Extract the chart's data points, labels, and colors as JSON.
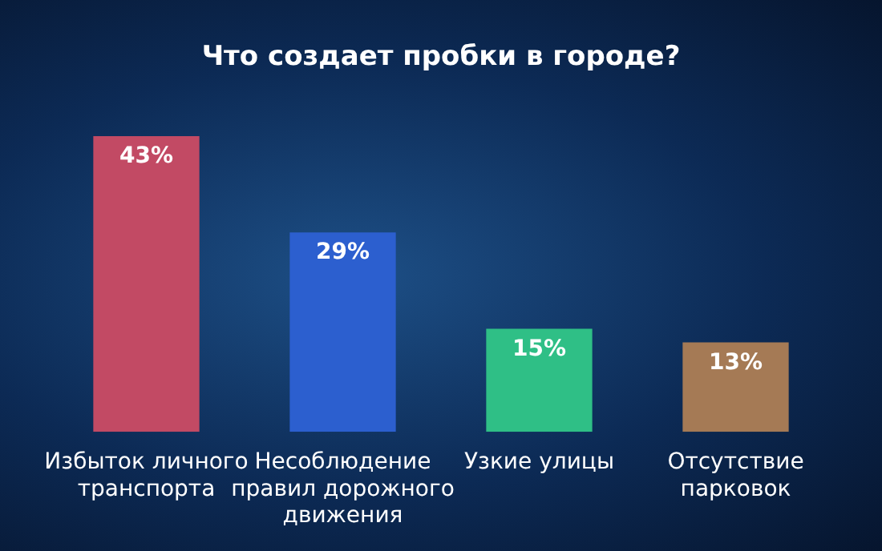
{
  "chart_data": {
    "type": "bar",
    "title": "Что создает пробки в городе?",
    "categories": [
      "Избыток личного транспорта",
      "Несоблюдение правил дорожного движения",
      "Узкие улицы",
      "Отсутствие парковок"
    ],
    "values": [
      43,
      29,
      15,
      13
    ],
    "colors": [
      "#c24a64",
      "#2c5fcf",
      "#2fbf86",
      "#a57a55"
    ],
    "value_labels": [
      "43%",
      "29%",
      "15%",
      "13%"
    ],
    "grid": false,
    "legend": false
  }
}
